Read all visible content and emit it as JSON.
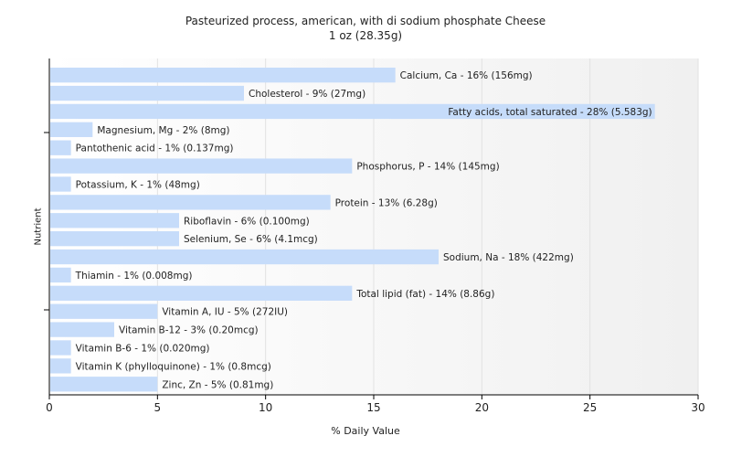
{
  "chart_data": {
    "type": "bar",
    "orientation": "horizontal",
    "title": "Pasteurized process, american, with di sodium phosphate Cheese",
    "subtitle": "1 oz (28.35g)",
    "xlabel": "% Daily Value",
    "ylabel": "Nutrient",
    "xlim": [
      0,
      30
    ],
    "xticks": [
      "0",
      "5",
      "10",
      "15",
      "20",
      "25",
      "30"
    ],
    "grid": true,
    "bar_color": "#c6dcfa",
    "categories": [
      "Calcium, Ca",
      "Cholesterol",
      "Fatty acids, total saturated",
      "Magnesium, Mg",
      "Pantothenic acid",
      "Phosphorus, P",
      "Potassium, K",
      "Protein",
      "Riboflavin",
      "Selenium, Se",
      "Sodium, Na",
      "Thiamin",
      "Total lipid (fat)",
      "Vitamin A, IU",
      "Vitamin B-12",
      "Vitamin B-6",
      "Vitamin K (phylloquinone)",
      "Zinc, Zn"
    ],
    "values": [
      16,
      9,
      28,
      2,
      1,
      14,
      1,
      13,
      6,
      6,
      18,
      1,
      14,
      5,
      3,
      1,
      1,
      5
    ],
    "labels": [
      "Calcium, Ca - 16% (156mg)",
      "Cholesterol - 9% (27mg)",
      "Fatty acids, total saturated - 28% (5.583g)",
      "Magnesium, Mg - 2% (8mg)",
      "Pantothenic acid - 1% (0.137mg)",
      "Phosphorus, P - 14% (145mg)",
      "Potassium, K - 1% (48mg)",
      "Protein - 13% (6.28g)",
      "Riboflavin - 6% (0.100mg)",
      "Selenium, Se - 6% (4.1mcg)",
      "Sodium, Na - 18% (422mg)",
      "Thiamin - 1% (0.008mg)",
      "Total lipid (fat) - 14% (8.86g)",
      "Vitamin A, IU - 5% (272IU)",
      "Vitamin B-12 - 3% (0.20mcg)",
      "Vitamin B-6 - 1% (0.020mg)",
      "Vitamin K (phylloquinone) - 1% (0.8mcg)",
      "Zinc, Zn - 5% (0.81mg)"
    ]
  }
}
